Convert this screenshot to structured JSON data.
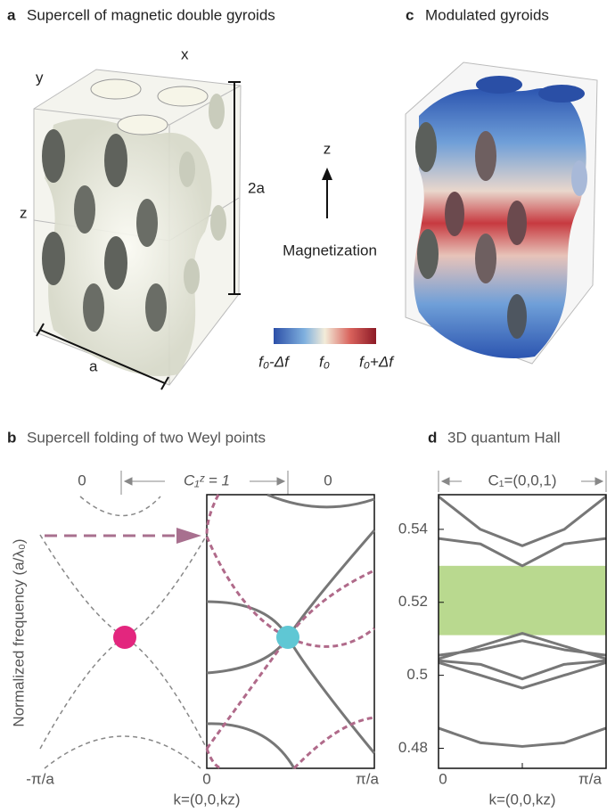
{
  "panel_a": {
    "label": "a",
    "title": "Supercell of magnetic double gyroids",
    "axis_labels": {
      "x": "x",
      "y": "y",
      "z": "z"
    },
    "height_label": "2a",
    "width_label": "a"
  },
  "magnetization": {
    "axis": "z",
    "label": "Magnetization"
  },
  "colorbar": {
    "labels": [
      "f₀-Δf",
      "f₀",
      "f₀+Δf"
    ]
  },
  "panel_c": {
    "label": "c",
    "title": "Modulated gyroids"
  },
  "panel_b": {
    "label": "b",
    "title": "Supercell folding of two Weyl points",
    "chern_labels": [
      "0",
      "C₁ᶻ = 1",
      "0"
    ],
    "y_label": "Normalized frequency  (a/λ₀)",
    "x_ticks": [
      "-π/a",
      "0",
      "π/a"
    ],
    "x_label": "k=(0,0,kz)"
  },
  "chart_data": {
    "type": "line",
    "label": "d",
    "title": "3D quantum Hall",
    "annotation": "C₁=(0,0,1)",
    "x": [
      0,
      0.25,
      0.5,
      0.75,
      1
    ],
    "xlim": [
      0,
      1
    ],
    "xticks": [
      {
        "value": 0,
        "label": "0"
      },
      {
        "value": 1,
        "label": "π/a"
      }
    ],
    "x_label": "k=(0,0,kz)",
    "ylim": [
      0.4745,
      0.5495
    ],
    "yticks": [
      0.48,
      0.5,
      0.52,
      0.54
    ],
    "gap": [
      0.511,
      0.53
    ],
    "gap_color": "#b9d98f",
    "series": [
      {
        "color": "#777777",
        "values": [
          0.549,
          0.54,
          0.5355,
          0.54,
          0.549
        ]
      },
      {
        "color": "#777777",
        "values": [
          0.5375,
          0.536,
          0.53,
          0.536,
          0.5375
        ]
      },
      {
        "color": "#777777",
        "values": [
          0.5045,
          0.508,
          0.5115,
          0.508,
          0.5045
        ]
      },
      {
        "color": "#777777",
        "values": [
          0.5055,
          0.507,
          0.5095,
          0.507,
          0.5055
        ]
      },
      {
        "color": "#777777",
        "values": [
          0.504,
          0.503,
          0.499,
          0.503,
          0.504
        ]
      },
      {
        "color": "#777777",
        "values": [
          0.5035,
          0.5,
          0.4965,
          0.5,
          0.5035
        ]
      },
      {
        "color": "#777777",
        "values": [
          0.4855,
          0.4815,
          0.4805,
          0.4815,
          0.4855
        ]
      }
    ]
  }
}
